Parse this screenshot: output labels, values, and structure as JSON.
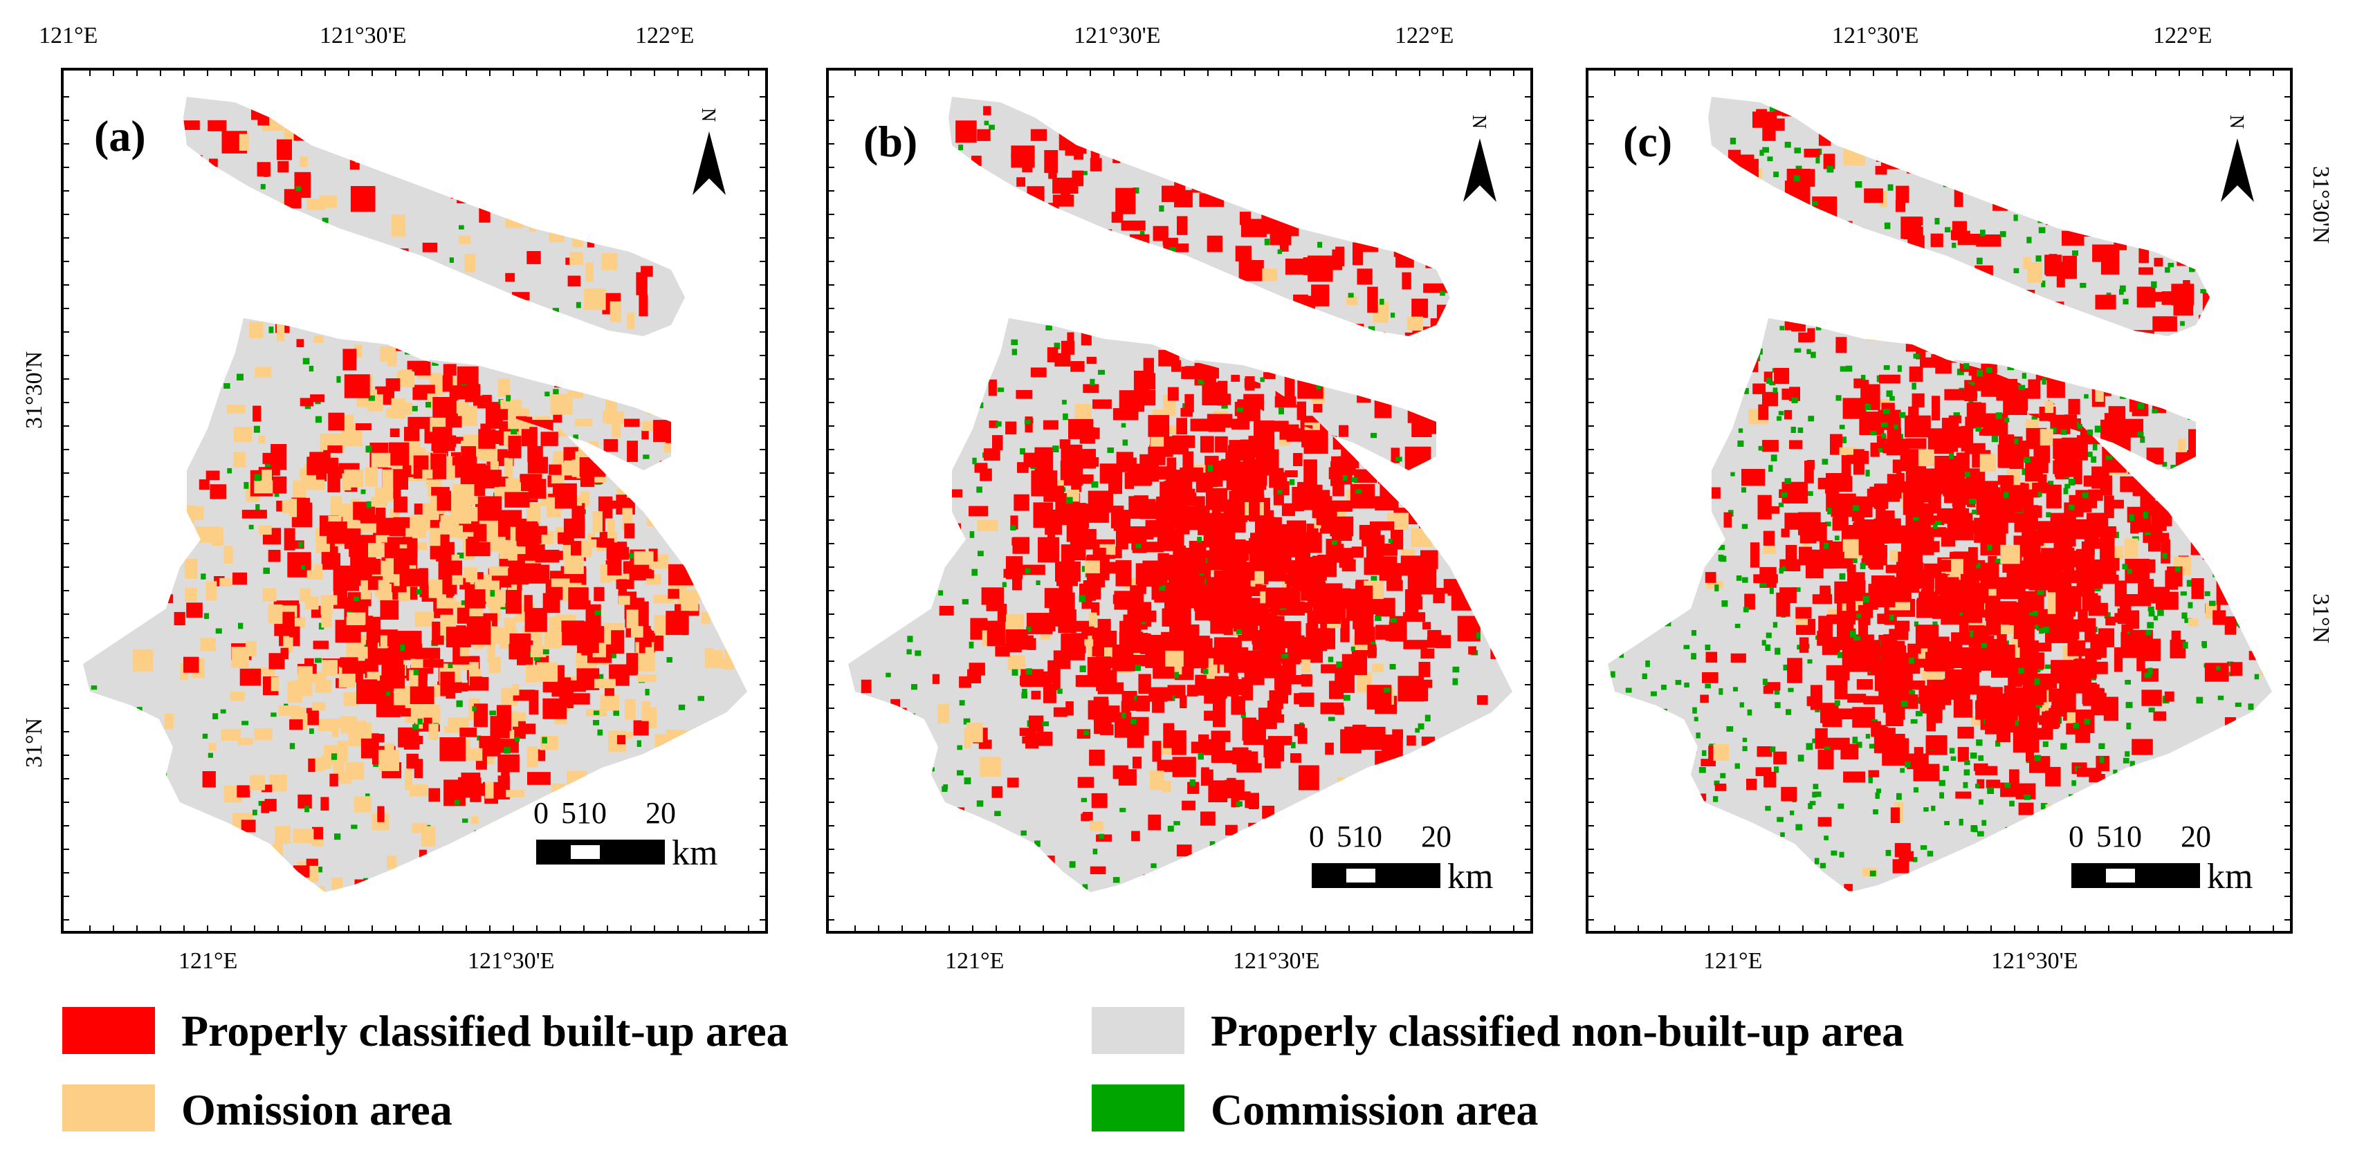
{
  "colors": {
    "built_up": "#ff0000",
    "omission": "#fdcf86",
    "non_built_up": "#dcdcdc",
    "commission": "#00a500",
    "frame": "#000000",
    "background": "#ffffff"
  },
  "panels": [
    {
      "label": "(a)",
      "top_ticks": [
        "121°E",
        "121°30'E",
        "122°E"
      ],
      "bottom_ticks": [
        "121°E",
        "121°30'E"
      ],
      "lat_ticks": [
        "31°30'N",
        "31°N"
      ],
      "lat_side": "left",
      "intensity": {
        "built_up": 0.45,
        "omission": 0.42,
        "commission": 0.05
      }
    },
    {
      "label": "(b)",
      "top_ticks": [
        "121°30'E",
        "122°E"
      ],
      "bottom_ticks": [
        "121°E",
        "121°30'E"
      ],
      "lat_ticks": [],
      "lat_side": "none",
      "intensity": {
        "built_up": 0.9,
        "omission": 0.08,
        "commission": 0.06
      }
    },
    {
      "label": "(c)",
      "top_ticks": [
        "121°30'E",
        "122°E"
      ],
      "bottom_ticks": [
        "121°E",
        "121°30'E"
      ],
      "lat_ticks": [
        "31°30'N",
        "31°N"
      ],
      "lat_side": "right",
      "intensity": {
        "built_up": 0.9,
        "omission": 0.05,
        "commission": 0.16
      }
    }
  ],
  "north_arrow": {
    "label": "N",
    "icon": "north-arrow-icon"
  },
  "scale_bar": {
    "ticks": [
      "0",
      "5",
      "10",
      "20"
    ],
    "unit": "km",
    "icon": "scale-bar-icon"
  },
  "legend": {
    "items": [
      {
        "label": "Properly classified built-up area",
        "color": "#ff0000"
      },
      {
        "label": "Properly classified non-built-up area",
        "color": "#dcdcdc"
      },
      {
        "label": "Omission area",
        "color": "#fdcf86"
      },
      {
        "label": "Commission area",
        "color": "#00a500"
      }
    ]
  }
}
